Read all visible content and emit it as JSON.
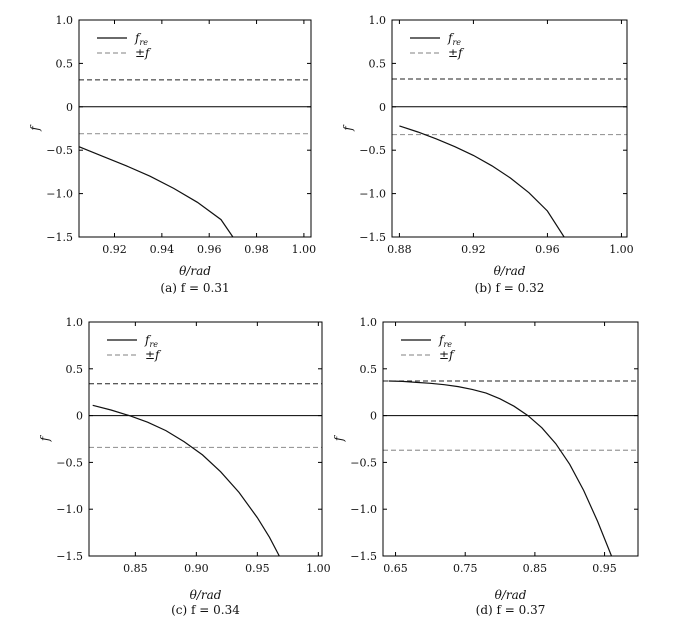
{
  "colors": {
    "f_re": "#111111",
    "plus_f": "#222222",
    "minus_f": "#9a9a9a",
    "axis": "#000000",
    "background": "#ffffff"
  },
  "chart_data": [
    {
      "type": "line",
      "caption": "(a) f = 0.31",
      "xlabel": "θ/rad",
      "ylabel": "f",
      "xlim": [
        0.905,
        1.003
      ],
      "ylim": [
        -1.5,
        1.0
      ],
      "xticks": [
        "0.92",
        "0.94",
        "0.96",
        "0.98",
        "1.00"
      ],
      "xtick_values": [
        0.92,
        0.94,
        0.96,
        0.98,
        1.0
      ],
      "yticks": [
        "1.0",
        "0.5",
        "0",
        "−0.5",
        "−1.0",
        "−1.5"
      ],
      "ytick_values": [
        1.0,
        0.5,
        0,
        -0.5,
        -1.0,
        -1.5
      ],
      "legend": [
        "f_re",
        "±f"
      ],
      "legend_position": "top-left",
      "f_value": 0.31,
      "series": [
        {
          "name": "f_re",
          "x": [
            0.905,
            0.915,
            0.925,
            0.935,
            0.945,
            0.955,
            0.965,
            0.97
          ],
          "y": [
            -0.46,
            -0.57,
            -0.68,
            -0.8,
            -0.94,
            -1.1,
            -1.3,
            -1.5
          ]
        }
      ]
    },
    {
      "type": "line",
      "caption": "(b) f = 0.32",
      "xlabel": "θ/rad",
      "ylabel": "f",
      "xlim": [
        0.876,
        1.003
      ],
      "ylim": [
        -1.5,
        1.0
      ],
      "xticks": [
        "0.88",
        "0.92",
        "0.96",
        "1.00"
      ],
      "xtick_values": [
        0.88,
        0.92,
        0.96,
        1.0
      ],
      "yticks": [
        "1.0",
        "0.5",
        "0",
        "−0.5",
        "−1.0",
        "−1.5"
      ],
      "ytick_values": [
        1.0,
        0.5,
        0,
        -0.5,
        -1.0,
        -1.5
      ],
      "legend": [
        "f_re",
        "±f"
      ],
      "legend_position": "top-left",
      "f_value": 0.32,
      "series": [
        {
          "name": "f_re",
          "x": [
            0.88,
            0.89,
            0.9,
            0.91,
            0.92,
            0.93,
            0.94,
            0.95,
            0.96,
            0.969
          ],
          "y": [
            -0.22,
            -0.29,
            -0.37,
            -0.46,
            -0.56,
            -0.68,
            -0.82,
            -0.99,
            -1.2,
            -1.5
          ]
        }
      ]
    },
    {
      "type": "line",
      "caption": "(c) f = 0.34",
      "xlabel": "θ/rad",
      "ylabel": "f",
      "xlim": [
        0.812,
        1.003
      ],
      "ylim": [
        -1.5,
        1.0
      ],
      "xticks": [
        "0.85",
        "0.90",
        "0.95",
        "1.00"
      ],
      "xtick_values": [
        0.85,
        0.9,
        0.95,
        1.0
      ],
      "yticks": [
        "1.0",
        "0.5",
        "0",
        "−0.5",
        "−1.0",
        "−1.5"
      ],
      "ytick_values": [
        1.0,
        0.5,
        0,
        -0.5,
        -1.0,
        -1.5
      ],
      "legend": [
        "f_re",
        "±f"
      ],
      "legend_position": "top-left",
      "f_value": 0.34,
      "series": [
        {
          "name": "f_re",
          "x": [
            0.815,
            0.83,
            0.845,
            0.86,
            0.875,
            0.89,
            0.905,
            0.92,
            0.935,
            0.95,
            0.96,
            0.968
          ],
          "y": [
            0.11,
            0.06,
            0.0,
            -0.07,
            -0.16,
            -0.28,
            -0.42,
            -0.6,
            -0.82,
            -1.09,
            -1.3,
            -1.5
          ]
        }
      ]
    },
    {
      "type": "line",
      "caption": "(d) f = 0.37",
      "xlabel": "θ/rad",
      "ylabel": "f",
      "xlim": [
        0.632,
        0.998
      ],
      "ylim": [
        -1.5,
        1.0
      ],
      "xticks": [
        "0.65",
        "0.75",
        "0.85",
        "0.95"
      ],
      "xtick_values": [
        0.65,
        0.75,
        0.85,
        0.95
      ],
      "yticks": [
        "1.0",
        "0.5",
        "0",
        "−0.5",
        "−1.0",
        "−1.5"
      ],
      "ytick_values": [
        1.0,
        0.5,
        0,
        -0.5,
        -1.0,
        -1.5
      ],
      "legend": [
        "f_re",
        "±f"
      ],
      "legend_position": "top-left",
      "f_value": 0.37,
      "series": [
        {
          "name": "f_re",
          "x": [
            0.64,
            0.66,
            0.68,
            0.7,
            0.72,
            0.74,
            0.76,
            0.78,
            0.8,
            0.82,
            0.84,
            0.86,
            0.88,
            0.9,
            0.92,
            0.94,
            0.96
          ],
          "y": [
            0.37,
            0.365,
            0.355,
            0.345,
            0.33,
            0.31,
            0.28,
            0.24,
            0.18,
            0.1,
            0.0,
            -0.13,
            -0.3,
            -0.52,
            -0.8,
            -1.13,
            -1.5
          ]
        }
      ]
    }
  ]
}
